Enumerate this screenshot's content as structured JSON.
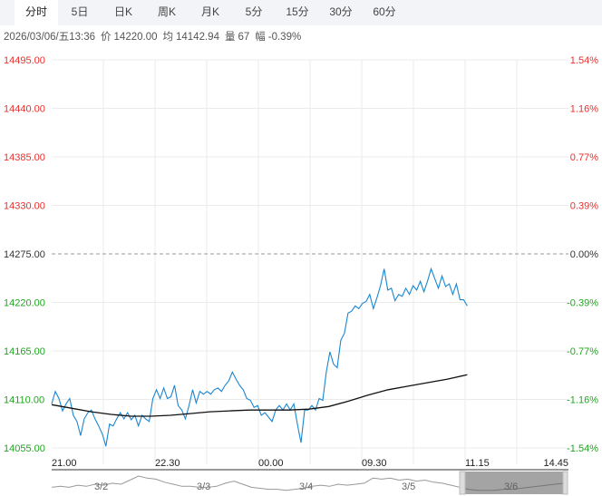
{
  "tabs": [
    "分时",
    "5日",
    "日K",
    "周K",
    "月K",
    "5分",
    "15分",
    "30分",
    "60分"
  ],
  "active_tab": 0,
  "info": {
    "datetime": "2026/03/06/五13:36",
    "price_label": "价",
    "price": "14220.00",
    "avg_label": "均",
    "avg": "14142.94",
    "volume_label": "量",
    "volume": "67",
    "change_label": "幅",
    "change": "-0.39%"
  },
  "colors": {
    "up": "#e8302c",
    "down": "#1fa51f",
    "flat": "#333333",
    "price_line": "#1a86d0",
    "avg_line": "#111111",
    "grid": "#ebebeb"
  },
  "chart_data": {
    "type": "line",
    "y_ticks_left": [
      "14495.00",
      "14440.00",
      "14385.00",
      "14330.00",
      "14275.00",
      "14220.00",
      "14165.00",
      "14110.00",
      "14055.00"
    ],
    "y_ticks_right": [
      "1.54%",
      "1.16%",
      "0.77%",
      "0.39%",
      "0.00%",
      "-0.39%",
      "-0.77%",
      "-1.16%",
      "-1.54%"
    ],
    "ylim": [
      14055,
      14495
    ],
    "prev_close": 14275,
    "x_ticks": [
      "21.00",
      "22.30",
      "00.00",
      "09.30",
      "11.15",
      "14.45"
    ],
    "series": [
      {
        "role": "price",
        "values": [
          14105,
          14119,
          14111,
          14097,
          14105,
          14111,
          14092,
          14085,
          14069,
          14088,
          14095,
          14098,
          14088,
          14080,
          14071,
          14057,
          14082,
          14080,
          14088,
          14095,
          14088,
          14095,
          14087,
          14092,
          14080,
          14092,
          14088,
          14085,
          14111,
          14121,
          14111,
          14123,
          14111,
          14113,
          14126,
          14103,
          14098,
          14088,
          14103,
          14121,
          14106,
          14119,
          14116,
          14119,
          14116,
          14121,
          14123,
          14119,
          14126,
          14131,
          14141,
          14133,
          14126,
          14121,
          14111,
          14109,
          14101,
          14103,
          14092,
          14095,
          14090,
          14085,
          14098,
          14103,
          14098,
          14105,
          14098,
          14105,
          14082,
          14061,
          14098,
          14098,
          14103,
          14098,
          14111,
          14109,
          14141,
          14164,
          14150,
          14146,
          14177,
          14185,
          14208,
          14210,
          14216,
          14213,
          14219,
          14221,
          14229,
          14213,
          14225,
          14239,
          14258,
          14234,
          14236,
          14222,
          14229,
          14227,
          14236,
          14229,
          14239,
          14234,
          14244,
          14232,
          14244,
          14258,
          14247,
          14236,
          14250,
          14238,
          14241,
          14229,
          14241,
          14223,
          14223,
          14216
        ]
      },
      {
        "role": "average",
        "values": [
          14104,
          14100,
          14096,
          14093,
          14091,
          14091,
          14092,
          14094,
          14096,
          14097,
          14098,
          14098,
          14098,
          14099,
          14102,
          14108,
          14115,
          14121,
          14125,
          14129,
          14133,
          14138
        ]
      }
    ],
    "navigator": {
      "labels": [
        "3/2",
        "3/3",
        "3/4",
        "3/5",
        "3/6"
      ],
      "values": [
        5,
        6,
        5,
        7,
        6,
        8,
        7,
        9,
        8,
        12,
        16,
        14,
        13,
        10,
        8,
        6,
        6,
        5,
        5,
        6,
        9,
        11,
        8,
        5,
        4,
        3,
        3,
        2,
        3,
        4,
        6,
        7,
        6,
        8,
        7,
        8,
        9,
        14,
        13,
        14,
        12,
        13,
        11,
        12,
        10,
        9,
        7,
        5,
        3,
        2,
        2,
        2,
        3,
        3,
        4,
        5,
        6,
        7,
        8,
        9
      ]
    }
  }
}
